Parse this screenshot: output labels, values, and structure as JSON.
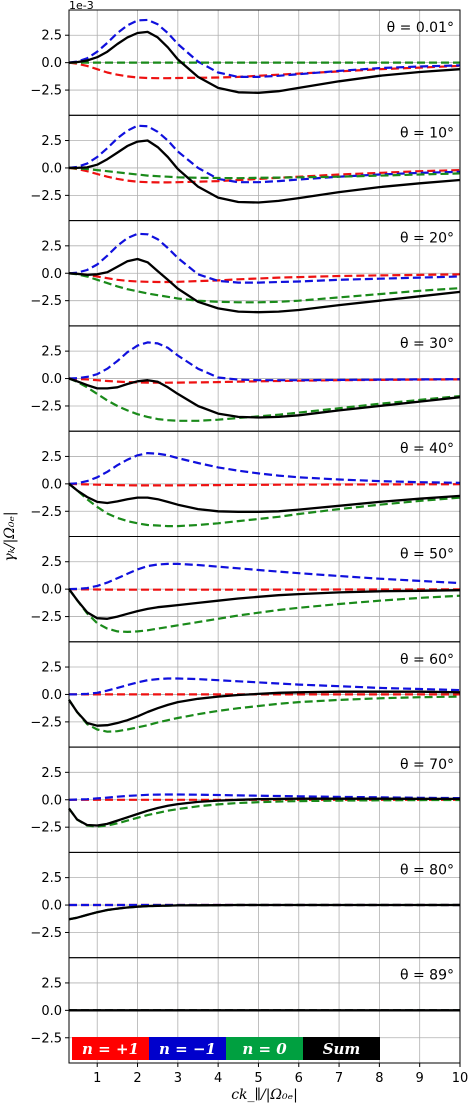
{
  "chart_data": {
    "type": "line",
    "panels_layout": "stacked-vertical",
    "shared_x": true,
    "xlabel": "ck_∥/|Ω₀ₑ|",
    "ylabel": "γₖ/|Ω₀ₑ|",
    "y_offset_label": "1e-3",
    "xlim": [
      0.3,
      10
    ],
    "ylim": [
      -4.8,
      4.8
    ],
    "xticks": [
      1,
      2,
      3,
      4,
      5,
      6,
      7,
      8,
      9,
      10
    ],
    "xtick_labels": [
      "1",
      "2",
      "3",
      "4",
      "5",
      "6",
      "7",
      "8",
      "9",
      "10"
    ],
    "yticks": [
      2.5,
      0.0,
      -2.5
    ],
    "ytick_labels": [
      "2.5",
      "0.0",
      "−2.5"
    ],
    "grid": true,
    "legend": {
      "placement": "bottom-left",
      "entries": [
        {
          "label": "n = +1",
          "color": "#ff0000"
        },
        {
          "label": "n = −1",
          "color": "#0000cc"
        },
        {
          "label": "n = 0",
          "color": "#00a040"
        },
        {
          "label": "Sum",
          "color": "#000000"
        }
      ]
    },
    "series_styles": {
      "n_plus1": {
        "color": "#ee1111",
        "dash": "dashed"
      },
      "n_minus1": {
        "color": "#1010dd",
        "dash": "dashed"
      },
      "n_0": {
        "color": "#1a8a1a",
        "dash": "dashed"
      },
      "sum": {
        "color": "#000000",
        "dash": "solid"
      }
    },
    "x": [
      0.3,
      0.5,
      0.75,
      1.0,
      1.25,
      1.5,
      1.75,
      2.0,
      2.25,
      2.5,
      2.75,
      3.0,
      3.5,
      4.0,
      4.5,
      5.0,
      5.5,
      6.0,
      7.0,
      8.0,
      9.0,
      10.0
    ],
    "panels": [
      {
        "annotation": "θ = 0.01°",
        "n_plus1": [
          0,
          -0.1,
          -0.3,
          -0.6,
          -0.9,
          -1.1,
          -1.25,
          -1.35,
          -1.4,
          -1.42,
          -1.42,
          -1.4,
          -1.38,
          -1.35,
          -1.3,
          -1.2,
          -1.1,
          -1.0,
          -0.8,
          -0.6,
          -0.45,
          -0.3
        ],
        "n_minus1": [
          0,
          0.1,
          0.4,
          1.0,
          1.8,
          2.7,
          3.4,
          3.85,
          3.9,
          3.5,
          2.7,
          1.7,
          0.1,
          -0.9,
          -1.3,
          -1.3,
          -1.2,
          -1.05,
          -0.75,
          -0.5,
          -0.35,
          -0.25
        ],
        "n_0": [
          0,
          0,
          0,
          0,
          0,
          0,
          0,
          0,
          0,
          0,
          0,
          0,
          0,
          0,
          0,
          0,
          0,
          0,
          0,
          0,
          0,
          0
        ],
        "sum": [
          0,
          0.05,
          0.2,
          0.5,
          1.0,
          1.7,
          2.3,
          2.7,
          2.8,
          2.3,
          1.4,
          0.3,
          -1.3,
          -2.3,
          -2.7,
          -2.75,
          -2.6,
          -2.3,
          -1.7,
          -1.2,
          -0.85,
          -0.6
        ]
      },
      {
        "annotation": "θ = 10°",
        "n_plus1": [
          0,
          -0.1,
          -0.3,
          -0.55,
          -0.8,
          -1.0,
          -1.15,
          -1.25,
          -1.3,
          -1.32,
          -1.32,
          -1.3,
          -1.25,
          -1.2,
          -1.1,
          -1.0,
          -0.9,
          -0.8,
          -0.6,
          -0.45,
          -0.3,
          -0.2
        ],
        "n_minus1": [
          0,
          0.1,
          0.4,
          1.0,
          1.8,
          2.7,
          3.4,
          3.85,
          3.8,
          3.3,
          2.5,
          1.5,
          0.0,
          -1.0,
          -1.3,
          -1.3,
          -1.2,
          -1.05,
          -0.8,
          -0.6,
          -0.45,
          -0.35
        ],
        "n_0": [
          0,
          -0.05,
          -0.1,
          -0.2,
          -0.3,
          -0.4,
          -0.5,
          -0.6,
          -0.7,
          -0.75,
          -0.8,
          -0.85,
          -0.9,
          -0.92,
          -0.93,
          -0.9,
          -0.88,
          -0.85,
          -0.8,
          -0.7,
          -0.6,
          -0.5
        ],
        "sum": [
          0,
          0.0,
          0.05,
          0.3,
          0.8,
          1.4,
          2.0,
          2.4,
          2.5,
          1.9,
          1.0,
          -0.1,
          -1.7,
          -2.7,
          -3.1,
          -3.15,
          -3.0,
          -2.75,
          -2.2,
          -1.75,
          -1.4,
          -1.1
        ]
      },
      {
        "annotation": "θ = 20°",
        "n_plus1": [
          0,
          -0.05,
          -0.15,
          -0.3,
          -0.45,
          -0.6,
          -0.7,
          -0.75,
          -0.78,
          -0.8,
          -0.8,
          -0.78,
          -0.72,
          -0.65,
          -0.55,
          -0.48,
          -0.4,
          -0.35,
          -0.25,
          -0.2,
          -0.15,
          -0.1
        ],
        "n_minus1": [
          0,
          0.05,
          0.3,
          0.8,
          1.6,
          2.5,
          3.2,
          3.6,
          3.55,
          3.1,
          2.3,
          1.4,
          -0.1,
          -0.7,
          -0.85,
          -0.85,
          -0.8,
          -0.75,
          -0.6,
          -0.5,
          -0.4,
          -0.3
        ],
        "n_0": [
          0,
          -0.1,
          -0.3,
          -0.6,
          -0.9,
          -1.2,
          -1.45,
          -1.65,
          -1.85,
          -2.0,
          -2.15,
          -2.3,
          -2.5,
          -2.6,
          -2.65,
          -2.65,
          -2.6,
          -2.5,
          -2.2,
          -1.9,
          -1.6,
          -1.35
        ],
        "sum": [
          0,
          -0.05,
          -0.15,
          -0.1,
          0.1,
          0.6,
          1.1,
          1.3,
          1.0,
          0.2,
          -0.6,
          -1.4,
          -2.6,
          -3.2,
          -3.5,
          -3.55,
          -3.5,
          -3.35,
          -2.9,
          -2.5,
          -2.1,
          -1.7
        ]
      },
      {
        "annotation": "θ = 30°",
        "n_plus1": [
          0,
          -0.03,
          -0.08,
          -0.15,
          -0.22,
          -0.28,
          -0.32,
          -0.35,
          -0.37,
          -0.38,
          -0.38,
          -0.37,
          -0.35,
          -0.32,
          -0.28,
          -0.25,
          -0.22,
          -0.2,
          -0.15,
          -0.12,
          -0.1,
          -0.08
        ],
        "n_minus1": [
          0,
          0.03,
          0.15,
          0.4,
          0.9,
          1.6,
          2.4,
          3.0,
          3.3,
          3.2,
          2.8,
          2.1,
          0.9,
          0.1,
          -0.1,
          -0.15,
          -0.15,
          -0.15,
          -0.12,
          -0.1,
          -0.08,
          -0.06
        ],
        "n_0": [
          0,
          -0.3,
          -0.8,
          -1.4,
          -2.0,
          -2.5,
          -2.9,
          -3.25,
          -3.5,
          -3.7,
          -3.8,
          -3.85,
          -3.85,
          -3.75,
          -3.6,
          -3.45,
          -3.3,
          -3.1,
          -2.7,
          -2.3,
          -1.95,
          -1.6
        ],
        "sum": [
          0,
          -0.25,
          -0.6,
          -0.9,
          -0.9,
          -0.8,
          -0.5,
          -0.25,
          -0.15,
          -0.3,
          -0.8,
          -1.4,
          -2.5,
          -3.2,
          -3.5,
          -3.55,
          -3.5,
          -3.35,
          -2.9,
          -2.5,
          -2.1,
          -1.7
        ]
      },
      {
        "annotation": "θ = 40°",
        "n_plus1": [
          0,
          -0.02,
          -0.05,
          -0.08,
          -0.1,
          -0.12,
          -0.13,
          -0.14,
          -0.14,
          -0.14,
          -0.14,
          -0.13,
          -0.12,
          -0.11,
          -0.1,
          -0.09,
          -0.08,
          -0.07,
          -0.06,
          -0.05,
          -0.04,
          -0.03
        ],
        "n_minus1": [
          0,
          0.05,
          0.25,
          0.6,
          1.1,
          1.7,
          2.2,
          2.6,
          2.8,
          2.75,
          2.6,
          2.35,
          1.9,
          1.5,
          1.2,
          0.95,
          0.75,
          0.6,
          0.4,
          0.25,
          0.15,
          0.1
        ],
        "n_0": [
          0,
          -0.6,
          -1.4,
          -2.1,
          -2.7,
          -3.1,
          -3.4,
          -3.6,
          -3.75,
          -3.8,
          -3.85,
          -3.85,
          -3.75,
          -3.6,
          -3.4,
          -3.2,
          -3.0,
          -2.75,
          -2.3,
          -1.9,
          -1.55,
          -1.25
        ],
        "sum": [
          0,
          -0.6,
          -1.2,
          -1.65,
          -1.75,
          -1.6,
          -1.4,
          -1.25,
          -1.25,
          -1.4,
          -1.65,
          -1.9,
          -2.3,
          -2.5,
          -2.55,
          -2.55,
          -2.5,
          -2.35,
          -2.0,
          -1.65,
          -1.35,
          -1.1
        ]
      },
      {
        "annotation": "θ = 50°",
        "n_plus1": [
          0,
          -0.01,
          -0.02,
          -0.03,
          -0.04,
          -0.05,
          -0.05,
          -0.05,
          -0.05,
          -0.05,
          -0.05,
          -0.05,
          -0.05,
          -0.05,
          -0.05,
          -0.04,
          -0.04,
          -0.04,
          -0.03,
          -0.03,
          -0.02,
          -0.02
        ],
        "n_minus1": [
          0,
          0.02,
          0.1,
          0.3,
          0.6,
          1.0,
          1.4,
          1.8,
          2.1,
          2.25,
          2.3,
          2.3,
          2.2,
          2.05,
          1.9,
          1.75,
          1.6,
          1.45,
          1.2,
          0.95,
          0.75,
          0.55
        ],
        "n_0": [
          0,
          -1.0,
          -2.2,
          -3.1,
          -3.6,
          -3.85,
          -3.9,
          -3.85,
          -3.75,
          -3.6,
          -3.45,
          -3.3,
          -3.0,
          -2.7,
          -2.4,
          -2.15,
          -1.9,
          -1.7,
          -1.35,
          -1.05,
          -0.8,
          -0.6
        ],
        "sum": [
          0,
          -1.0,
          -2.1,
          -2.65,
          -2.7,
          -2.5,
          -2.25,
          -2.0,
          -1.8,
          -1.65,
          -1.55,
          -1.45,
          -1.25,
          -1.05,
          -0.85,
          -0.7,
          -0.55,
          -0.45,
          -0.3,
          -0.2,
          -0.15,
          -0.1
        ]
      },
      {
        "annotation": "θ = 60°",
        "n_plus1": [
          0,
          0,
          0,
          0,
          0,
          0,
          0,
          0,
          0,
          0,
          0,
          0,
          0,
          0,
          0,
          0,
          0,
          0,
          0,
          0,
          0,
          0
        ],
        "n_minus1": [
          0,
          0.01,
          0.05,
          0.15,
          0.35,
          0.6,
          0.85,
          1.1,
          1.3,
          1.4,
          1.45,
          1.45,
          1.4,
          1.3,
          1.2,
          1.1,
          1.0,
          0.9,
          0.75,
          0.6,
          0.5,
          0.4
        ],
        "n_0": [
          -0.5,
          -1.6,
          -2.7,
          -3.2,
          -3.4,
          -3.35,
          -3.2,
          -3.0,
          -2.8,
          -2.55,
          -2.35,
          -2.15,
          -1.8,
          -1.5,
          -1.25,
          -1.05,
          -0.85,
          -0.7,
          -0.5,
          -0.35,
          -0.25,
          -0.2
        ],
        "sum": [
          -0.5,
          -1.6,
          -2.6,
          -2.85,
          -2.8,
          -2.6,
          -2.35,
          -2.0,
          -1.6,
          -1.25,
          -0.95,
          -0.7,
          -0.4,
          -0.2,
          -0.05,
          0.05,
          0.15,
          0.2,
          0.25,
          0.25,
          0.25,
          0.2
        ]
      },
      {
        "annotation": "θ = 70°",
        "n_plus1": [
          0,
          0,
          0,
          0,
          0,
          0,
          0,
          0,
          0,
          0,
          0,
          0,
          0,
          0,
          0,
          0,
          0,
          0,
          0,
          0,
          0,
          0
        ],
        "n_minus1": [
          0,
          0.02,
          0.05,
          0.12,
          0.2,
          0.28,
          0.35,
          0.4,
          0.45,
          0.47,
          0.48,
          0.48,
          0.46,
          0.43,
          0.4,
          0.37,
          0.34,
          0.31,
          0.26,
          0.22,
          0.18,
          0.15
        ],
        "n_0": [
          -0.8,
          -1.8,
          -2.35,
          -2.45,
          -2.35,
          -2.15,
          -1.9,
          -1.65,
          -1.4,
          -1.2,
          -1.0,
          -0.85,
          -0.6,
          -0.42,
          -0.3,
          -0.22,
          -0.16,
          -0.12,
          -0.08,
          -0.05,
          -0.03,
          -0.02
        ],
        "sum": [
          -0.8,
          -1.8,
          -2.3,
          -2.35,
          -2.2,
          -1.9,
          -1.6,
          -1.3,
          -1.0,
          -0.75,
          -0.55,
          -0.4,
          -0.2,
          -0.08,
          0.0,
          0.05,
          0.08,
          0.1,
          0.1,
          0.1,
          0.09,
          0.08
        ]
      },
      {
        "annotation": "θ = 80°",
        "n_plus1": [
          0,
          0,
          0,
          0,
          0,
          0,
          0,
          0,
          0,
          0,
          0,
          0,
          0,
          0,
          0,
          0,
          0,
          0,
          0,
          0,
          0,
          0
        ],
        "n_minus1": [
          0,
          0,
          0,
          0,
          0,
          0,
          0,
          0,
          0,
          0,
          0,
          0,
          0,
          0,
          0,
          0,
          0,
          0,
          0,
          0,
          0,
          0
        ],
        "n_0": [
          -1.3,
          -1.15,
          -0.9,
          -0.65,
          -0.45,
          -0.32,
          -0.22,
          -0.15,
          -0.1,
          -0.07,
          -0.05,
          -0.03,
          -0.02,
          -0.01,
          0,
          0,
          0,
          0,
          0,
          0,
          0,
          0
        ],
        "sum": [
          -1.3,
          -1.15,
          -0.9,
          -0.65,
          -0.45,
          -0.32,
          -0.22,
          -0.15,
          -0.1,
          -0.07,
          -0.05,
          -0.03,
          -0.02,
          -0.01,
          0,
          0,
          0,
          0,
          0,
          0,
          0,
          0
        ]
      },
      {
        "annotation": "θ = 89°",
        "n_plus1": [
          0,
          0,
          0,
          0,
          0,
          0,
          0,
          0,
          0,
          0,
          0,
          0,
          0,
          0,
          0,
          0,
          0,
          0,
          0,
          0,
          0,
          0
        ],
        "n_minus1": [
          0,
          0,
          0,
          0,
          0,
          0,
          0,
          0,
          0,
          0,
          0,
          0,
          0,
          0,
          0,
          0,
          0,
          0,
          0,
          0,
          0,
          0
        ],
        "n_0": [
          0,
          0,
          0,
          0,
          0,
          0,
          0,
          0,
          0,
          0,
          0,
          0,
          0,
          0,
          0,
          0,
          0,
          0,
          0,
          0,
          0,
          0
        ],
        "sum": [
          0,
          0,
          0,
          0,
          0,
          0,
          0,
          0,
          0,
          0,
          0,
          0,
          0,
          0,
          0,
          0,
          0,
          0,
          0,
          0,
          0,
          0
        ]
      }
    ]
  }
}
